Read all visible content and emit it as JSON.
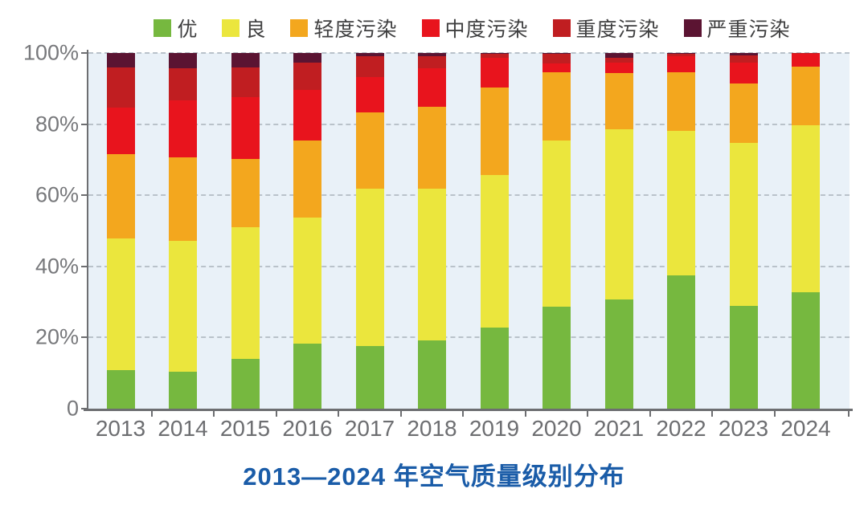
{
  "chart_data": {
    "type": "bar",
    "variant": "stacked-100-percent",
    "title": "2013—2024 年空气质量级别分布",
    "categories": [
      "2013",
      "2014",
      "2015",
      "2016",
      "2017",
      "2018",
      "2019",
      "2020",
      "2021",
      "2022",
      "2023",
      "2024"
    ],
    "series": [
      {
        "name": "优",
        "color": "#76b83f",
        "values": [
          10.9,
          10.3,
          14.1,
          18.2,
          17.6,
          19.2,
          22.8,
          28.6,
          30.8,
          37.4,
          28.8,
          32.8
        ]
      },
      {
        "name": "良",
        "color": "#ebe63d",
        "values": [
          36.9,
          36.8,
          36.9,
          35.6,
          44.3,
          42.7,
          42.9,
          46.9,
          47.7,
          40.7,
          45.9,
          46.8
        ]
      },
      {
        "name": "轻度污染",
        "color": "#f3a71e",
        "values": [
          23.8,
          23.5,
          19.2,
          21.5,
          21.3,
          23.0,
          24.6,
          19.0,
          15.8,
          16.6,
          16.7,
          16.6
        ]
      },
      {
        "name": "中度污染",
        "color": "#e8141d",
        "values": [
          13.1,
          16.2,
          17.3,
          14.3,
          10.1,
          10.9,
          8.3,
          2.5,
          3.0,
          4.5,
          5.8,
          3.5
        ]
      },
      {
        "name": "重度污染",
        "color": "#c01e21",
        "values": [
          11.3,
          9.0,
          8.5,
          7.7,
          5.7,
          3.4,
          1.1,
          2.7,
          1.4,
          0.5,
          2.1,
          0.3
        ]
      },
      {
        "name": "严重污染",
        "color": "#5b1432",
        "values": [
          4.0,
          4.2,
          4.0,
          2.7,
          1.0,
          0.8,
          0.3,
          0.3,
          1.3,
          0.3,
          0.7,
          0.0
        ]
      }
    ],
    "yticks": [
      {
        "label": "100%",
        "value": 100
      },
      {
        "label": "80%",
        "value": 80
      },
      {
        "label": "60%",
        "value": 60
      },
      {
        "label": "40%",
        "value": 40
      },
      {
        "label": "20%",
        "value": 20
      },
      {
        "label": "0",
        "value": 0
      }
    ],
    "ylim": [
      0,
      100
    ],
    "grid": "dashed horizontal",
    "legend_position": "top",
    "plot_background": "#e9f1f8"
  }
}
